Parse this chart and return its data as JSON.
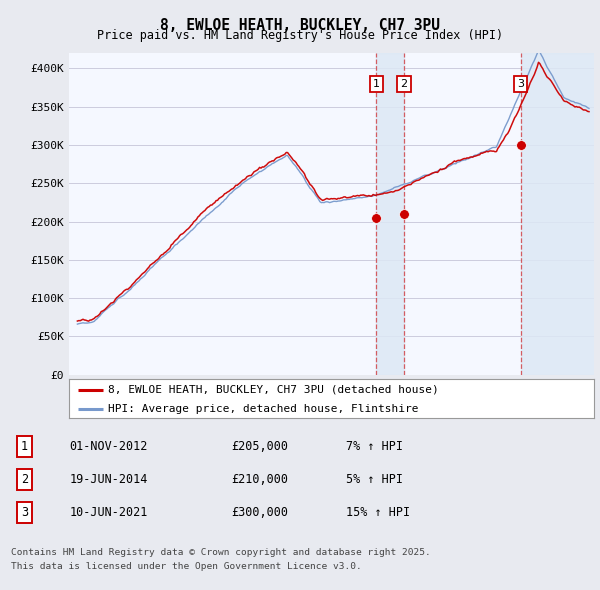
{
  "title": "8, EWLOE HEATH, BUCKLEY, CH7 3PU",
  "subtitle": "Price paid vs. HM Land Registry's House Price Index (HPI)",
  "ylim": [
    0,
    420000
  ],
  "yticks": [
    0,
    50000,
    100000,
    150000,
    200000,
    250000,
    300000,
    350000,
    400000
  ],
  "ytick_labels": [
    "£0",
    "£50K",
    "£100K",
    "£150K",
    "£200K",
    "£250K",
    "£300K",
    "£350K",
    "£400K"
  ],
  "red_color": "#cc0000",
  "blue_color": "#7799cc",
  "shade_color": "#dde8f5",
  "transactions": [
    {
      "label": "1",
      "date": "01-NOV-2012",
      "price": 205000,
      "hpi_pct": "7%",
      "x": 2012.83
    },
    {
      "label": "2",
      "date": "19-JUN-2014",
      "price": 210000,
      "hpi_pct": "5%",
      "x": 2014.47
    },
    {
      "label": "3",
      "date": "10-JUN-2021",
      "price": 300000,
      "hpi_pct": "15%",
      "x": 2021.44
    }
  ],
  "legend_label_red": "8, EWLOE HEATH, BUCKLEY, CH7 3PU (detached house)",
  "legend_label_blue": "HPI: Average price, detached house, Flintshire",
  "footer_line1": "Contains HM Land Registry data © Crown copyright and database right 2025.",
  "footer_line2": "This data is licensed under the Open Government Licence v3.0.",
  "background_color": "#e8eaf0",
  "plot_background": "#f5f8ff",
  "grid_color": "#ccccdd",
  "xmin": 1994.5,
  "xmax": 2025.8
}
